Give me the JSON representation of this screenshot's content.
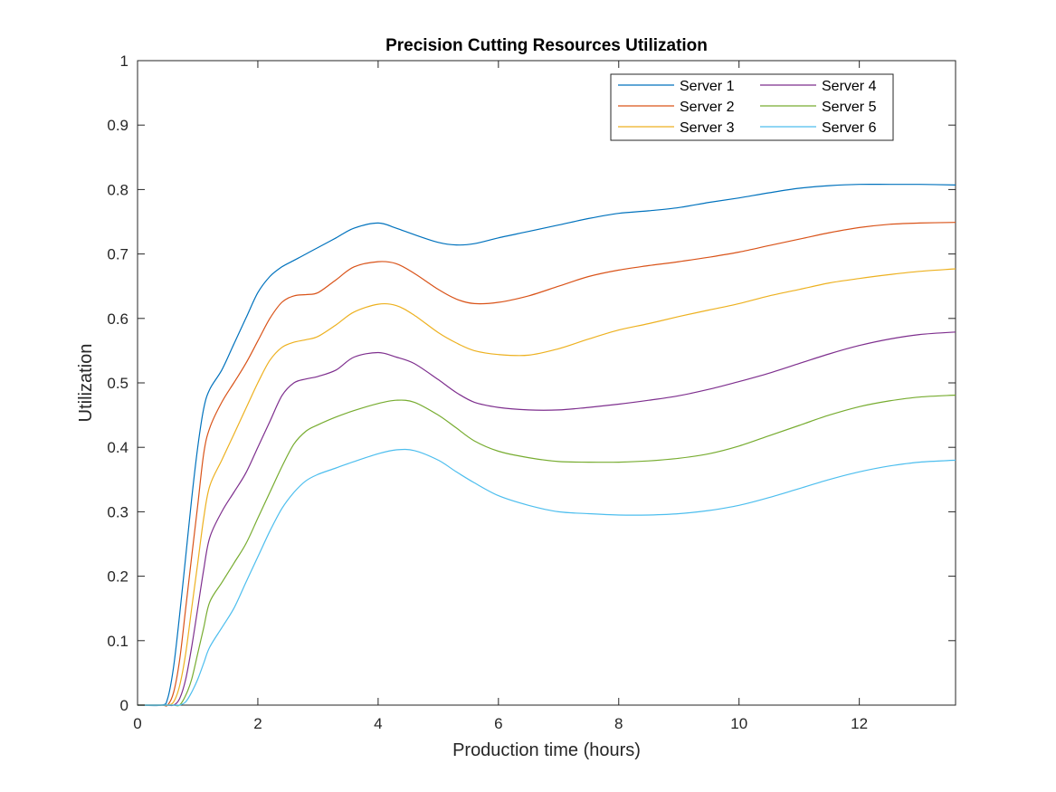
{
  "chart_data": {
    "type": "line",
    "title": "Precision Cutting Resources Utilization",
    "xlabel": "Production time (hours)",
    "ylabel": "Utilization",
    "xlim": [
      0,
      13.6
    ],
    "ylim": [
      0,
      1
    ],
    "xticks": [
      0,
      2,
      4,
      6,
      8,
      10,
      12
    ],
    "yticks": [
      0,
      0.1,
      0.2,
      0.3,
      0.4,
      0.5,
      0.6,
      0.7,
      0.8,
      0.9,
      1
    ],
    "grid": false,
    "legend": {
      "placement": "top-right",
      "columns": 2
    },
    "x": [
      0,
      0.4,
      0.5,
      0.6,
      0.7,
      0.8,
      0.9,
      1.0,
      1.1,
      1.2,
      1.4,
      1.6,
      1.8,
      2.0,
      2.2,
      2.4,
      2.6,
      2.8,
      3.0,
      3.3,
      3.6,
      4.0,
      4.3,
      4.6,
      5.0,
      5.3,
      5.6,
      6.0,
      6.5,
      7.0,
      7.5,
      8.0,
      8.5,
      9.0,
      9.5,
      10.0,
      10.5,
      11.0,
      11.5,
      12.0,
      12.5,
      13.0,
      13.6
    ],
    "series": [
      {
        "name": "Server 1",
        "color": "#0072BD",
        "values": [
          0,
          0,
          0.01,
          0.06,
          0.14,
          0.23,
          0.32,
          0.4,
          0.46,
          0.49,
          0.52,
          0.56,
          0.6,
          0.64,
          0.665,
          0.68,
          0.69,
          0.7,
          0.71,
          0.725,
          0.74,
          0.748,
          0.74,
          0.73,
          0.718,
          0.714,
          0.716,
          0.725,
          0.735,
          0.745,
          0.755,
          0.763,
          0.767,
          0.772,
          0.78,
          0.787,
          0.795,
          0.802,
          0.806,
          0.808,
          0.808,
          0.808,
          0.807
        ]
      },
      {
        "name": "Server 2",
        "color": "#D95319",
        "values": [
          0,
          0,
          0,
          0.02,
          0.07,
          0.15,
          0.23,
          0.31,
          0.39,
          0.43,
          0.47,
          0.5,
          0.53,
          0.565,
          0.6,
          0.625,
          0.635,
          0.637,
          0.64,
          0.66,
          0.68,
          0.688,
          0.685,
          0.67,
          0.645,
          0.63,
          0.623,
          0.625,
          0.635,
          0.65,
          0.665,
          0.675,
          0.682,
          0.688,
          0.695,
          0.703,
          0.713,
          0.723,
          0.733,
          0.741,
          0.746,
          0.748,
          0.749
        ]
      },
      {
        "name": "Server 3",
        "color": "#EDB120",
        "values": [
          0,
          0,
          0,
          0.005,
          0.03,
          0.08,
          0.15,
          0.22,
          0.29,
          0.34,
          0.38,
          0.42,
          0.46,
          0.5,
          0.535,
          0.555,
          0.563,
          0.567,
          0.572,
          0.59,
          0.61,
          0.622,
          0.62,
          0.605,
          0.578,
          0.562,
          0.55,
          0.544,
          0.543,
          0.553,
          0.568,
          0.582,
          0.592,
          0.603,
          0.613,
          0.623,
          0.635,
          0.645,
          0.655,
          0.662,
          0.668,
          0.673,
          0.677
        ]
      },
      {
        "name": "Server 4",
        "color": "#7E2F8E",
        "values": [
          0,
          0,
          0,
          0,
          0.01,
          0.04,
          0.09,
          0.15,
          0.21,
          0.26,
          0.3,
          0.33,
          0.36,
          0.4,
          0.44,
          0.48,
          0.5,
          0.506,
          0.51,
          0.52,
          0.54,
          0.547,
          0.54,
          0.53,
          0.505,
          0.485,
          0.47,
          0.462,
          0.458,
          0.458,
          0.462,
          0.467,
          0.473,
          0.48,
          0.49,
          0.502,
          0.515,
          0.53,
          0.545,
          0.558,
          0.568,
          0.575,
          0.579
        ]
      },
      {
        "name": "Server 5",
        "color": "#77AC30",
        "values": [
          0,
          0,
          0,
          0,
          0,
          0.015,
          0.04,
          0.08,
          0.12,
          0.16,
          0.19,
          0.22,
          0.25,
          0.29,
          0.33,
          0.37,
          0.405,
          0.425,
          0.435,
          0.447,
          0.457,
          0.468,
          0.473,
          0.47,
          0.45,
          0.43,
          0.41,
          0.394,
          0.384,
          0.378,
          0.377,
          0.377,
          0.379,
          0.383,
          0.39,
          0.402,
          0.418,
          0.434,
          0.45,
          0.463,
          0.472,
          0.478,
          0.481
        ]
      },
      {
        "name": "Server 6",
        "color": "#4DBEEE",
        "values": [
          0,
          0,
          0,
          0,
          0,
          0.005,
          0.02,
          0.04,
          0.065,
          0.09,
          0.12,
          0.15,
          0.19,
          0.23,
          0.27,
          0.305,
          0.33,
          0.348,
          0.358,
          0.368,
          0.378,
          0.39,
          0.396,
          0.395,
          0.38,
          0.362,
          0.345,
          0.325,
          0.31,
          0.3,
          0.297,
          0.295,
          0.295,
          0.297,
          0.302,
          0.31,
          0.322,
          0.336,
          0.35,
          0.362,
          0.371,
          0.377,
          0.38
        ]
      }
    ]
  }
}
